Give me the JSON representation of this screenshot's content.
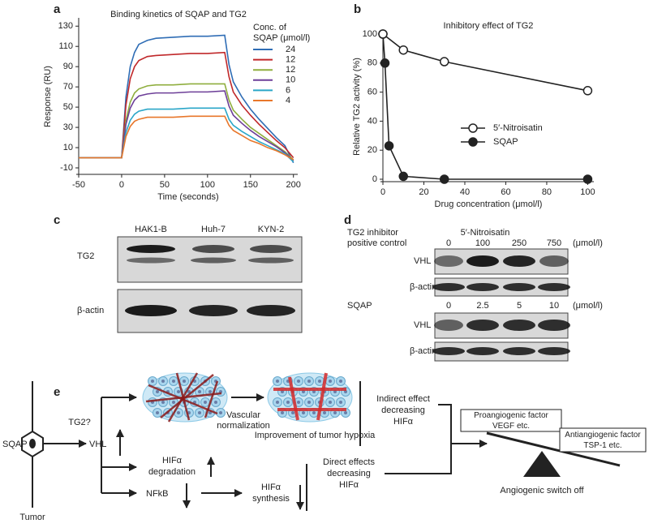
{
  "panel_labels": [
    "a",
    "b",
    "c",
    "d",
    "e"
  ],
  "chart_data": [
    {
      "type": "line",
      "title": "Binding kinetics of SQAP and TG2",
      "x_label": "Time (seconds)",
      "y_label": "Response (RU)",
      "legend_title": [
        "Conc. of",
        "SQAP (μmol/l)"
      ],
      "x": [
        -50,
        -25,
        0,
        5,
        10,
        15,
        20,
        30,
        40,
        60,
        80,
        100,
        120,
        125,
        130,
        140,
        150,
        160,
        170,
        180,
        190,
        200
      ],
      "series": [
        {
          "name": "24",
          "color": "#2f6db5",
          "values": [
            0,
            0,
            0,
            60,
            90,
            104,
            112,
            116,
            118,
            119,
            120,
            120,
            121,
            92,
            75,
            60,
            48,
            38,
            29,
            20,
            12,
            -5
          ]
        },
        {
          "name": "12",
          "color": "#c0282a",
          "values": [
            0,
            0,
            0,
            52,
            78,
            90,
            96,
            100,
            101,
            102,
            103,
            103,
            104,
            80,
            65,
            52,
            42,
            33,
            25,
            17,
            10,
            0
          ]
        },
        {
          "name": "12",
          "color": "#8fae3e",
          "values": [
            0,
            0,
            0,
            37,
            55,
            64,
            68,
            71,
            72,
            72,
            73,
            73,
            73,
            57,
            47,
            38,
            30,
            24,
            18,
            12,
            6,
            -2
          ]
        },
        {
          "name": "10",
          "color": "#6d3f98",
          "values": [
            0,
            0,
            0,
            33,
            49,
            57,
            61,
            63,
            64,
            64,
            65,
            65,
            66,
            51,
            42,
            34,
            27,
            21,
            16,
            11,
            5,
            -3
          ]
        },
        {
          "name": "6",
          "color": "#2aa6c8",
          "values": [
            0,
            0,
            0,
            25,
            37,
            43,
            46,
            48,
            48,
            48,
            49,
            49,
            49,
            38,
            32,
            26,
            21,
            16,
            12,
            8,
            4,
            -4
          ]
        },
        {
          "name": "4",
          "color": "#e8772b",
          "values": [
            0,
            0,
            0,
            21,
            31,
            36,
            38,
            40,
            40,
            40,
            41,
            41,
            41,
            32,
            27,
            22,
            17,
            14,
            10,
            7,
            3,
            -2
          ]
        }
      ],
      "xlim": [
        -50,
        205
      ],
      "xticks": [
        -50,
        0,
        50,
        100,
        150,
        200
      ],
      "ylim": [
        -14,
        135
      ],
      "yticks": [
        -10,
        10,
        30,
        50,
        70,
        90,
        110,
        130
      ]
    },
    {
      "type": "line",
      "title": "Inhibitory effect of TG2",
      "x_label": "Drug concentration (μmol/l)",
      "y_label": "Relative TG2 activity (%)",
      "series": [
        {
          "name": "5′-Nitroisatin",
          "marker": "open",
          "color": "#222222",
          "x": [
            0,
            10,
            30,
            100
          ],
          "values": [
            100,
            89,
            81,
            61
          ]
        },
        {
          "name": "SQAP",
          "marker": "filled",
          "color": "#222222",
          "x": [
            0,
            1,
            3,
            10,
            30,
            100
          ],
          "values": [
            100,
            80,
            23,
            2,
            0,
            0
          ]
        }
      ],
      "xlim": [
        0,
        103
      ],
      "xticks": [
        0,
        20,
        40,
        60,
        80,
        100
      ],
      "ylim": [
        0,
        100
      ],
      "yticks": [
        0,
        20,
        40,
        60,
        80,
        100
      ],
      "legend_position": "right"
    }
  ],
  "blot_c": {
    "lanes": [
      "HAK1-B",
      "Huh-7",
      "KYN-2"
    ],
    "rows": [
      "TG2",
      "β-actin"
    ]
  },
  "blot_d": {
    "label_lines": [
      "TG2 inhibitor",
      "positive control"
    ],
    "drug": "5′-Nitroisatin",
    "doses": [
      "0",
      "100",
      "250",
      "750"
    ],
    "unit": "(μmol/l)",
    "rows": [
      "VHL",
      "β-actin"
    ],
    "sqap": {
      "drug": "SQAP",
      "doses": [
        "0",
        "2.5",
        "5",
        "10"
      ],
      "unit": "(μmol/l)",
      "rows": [
        "VHL",
        "β-actin"
      ]
    }
  },
  "diagram": {
    "sqap": "SQAP",
    "tumor": "Tumor",
    "tg2": "TG2?",
    "vhl": "VHL",
    "vascular": [
      "Vascular",
      "normalization"
    ],
    "hypoxia": "Improvement of tumor hypoxia",
    "indirect": [
      "Indirect effect",
      "decreasing",
      "HIFα"
    ],
    "degradation": [
      "HIFα",
      "degradation"
    ],
    "nfkb": "NFkB",
    "synthesis": [
      "HIFα",
      "synthesis"
    ],
    "direct": [
      "Direct effects",
      "decreasing",
      "HIFα"
    ],
    "pro": [
      "Proangiogenic factor",
      "VEGF etc."
    ],
    "anti": [
      "Antiangiogenic factor",
      "TSP-1 etc."
    ],
    "switch": "Angiogenic switch off"
  }
}
